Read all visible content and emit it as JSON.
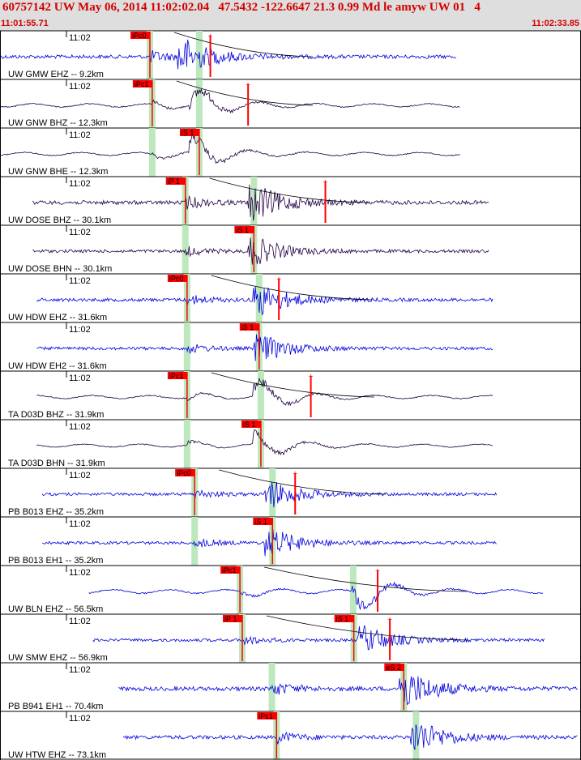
{
  "header": {
    "title": "60757142 UW May 06, 2014 11:02:02.04   47.5432 -122.6647 21.3 0.99 Md le amyw UW 01   4",
    "start_time": "11:01:55.71",
    "end_time": "11:02:33.85"
  },
  "tick_label": "11:02",
  "colors": {
    "header_bg": "#dedede",
    "header_text": "#d40000",
    "trace_blue": "#0000dd",
    "trace_purple": "#220044",
    "pick_red": "#ff0000",
    "window_green": "#bde8bd"
  },
  "icons": [
    "pick-flag-icon",
    "amplitude-marker-icon"
  ],
  "traces": [
    {
      "label": "UW GMW EHZ -- 9.2km",
      "color": "blue",
      "data_start": 0.0,
      "data_end": 0.785,
      "amp": 0.25,
      "p": {
        "pos": 0.258,
        "label": "iPc0"
      },
      "s": {
        "pos": 0.343,
        "label": ""
      },
      "burst": 0.32,
      "amp_pos": 0.362,
      "curve": true,
      "wave": "noise"
    },
    {
      "label": "UW GNW BHZ -- 12.3km",
      "color": "purple",
      "data_start": 0.0,
      "data_end": 0.793,
      "amp": 0.15,
      "p": {
        "pos": 0.262,
        "label": "iPc1"
      },
      "s": {
        "pos": 0.343,
        "label": ""
      },
      "burst": 0.34,
      "amp_pos": 0.427,
      "curve": true,
      "wave": "smooth"
    },
    {
      "label": "UW GNW BHE -- 12.3km",
      "color": "purple",
      "data_start": 0.0,
      "data_end": 0.793,
      "amp": 0.12,
      "p": {
        "pos": 0.262,
        "label": ""
      },
      "s": {
        "pos": 0.343,
        "label": "iS 1"
      },
      "burst": 0.34,
      "amp_pos": null,
      "curve": false,
      "wave": "smooth"
    },
    {
      "label": "UW DOSE BHZ -- 30.1km",
      "color": "purple",
      "data_start": 0.056,
      "data_end": 0.841,
      "amp": 0.3,
      "p": {
        "pos": 0.319,
        "label": "iP 1"
      },
      "s": {
        "pos": 0.437,
        "label": ""
      },
      "burst": 0.44,
      "amp_pos": 0.56,
      "curve": true,
      "wave": "noise"
    },
    {
      "label": "UW DOSE BHN -- 30.1km",
      "color": "purple",
      "data_start": 0.056,
      "data_end": 0.841,
      "amp": 0.12,
      "p": {
        "pos": 0.319,
        "label": ""
      },
      "s": {
        "pos": 0.437,
        "label": "iS 1"
      },
      "burst": 0.44,
      "amp_pos": null,
      "curve": false,
      "wave": "noise"
    },
    {
      "label": "UW HDW EHZ -- 31.6km",
      "color": "blue",
      "data_start": 0.063,
      "data_end": 0.848,
      "amp": 0.18,
      "p": {
        "pos": 0.322,
        "label": "iPc0"
      },
      "s": {
        "pos": 0.446,
        "label": ""
      },
      "burst": 0.45,
      "amp_pos": 0.48,
      "curve": true,
      "wave": "noise"
    },
    {
      "label": "UW HDW EH2 -- 31.6km",
      "color": "blue",
      "data_start": 0.063,
      "data_end": 0.848,
      "amp": 0.12,
      "p": {
        "pos": 0.322,
        "label": ""
      },
      "s": {
        "pos": 0.446,
        "label": "iS 1"
      },
      "burst": 0.45,
      "amp_pos": null,
      "curve": false,
      "wave": "noise"
    },
    {
      "label": "TA D03D BHZ -- 31.9km",
      "color": "purple",
      "data_start": 0.063,
      "data_end": 0.848,
      "amp": 0.12,
      "p": {
        "pos": 0.322,
        "label": "iPc1"
      },
      "s": {
        "pos": 0.449,
        "label": ""
      },
      "burst": 0.45,
      "amp_pos": 0.535,
      "curve": true,
      "wave": "smooth"
    },
    {
      "label": "TA D03D BHN -- 31.9km",
      "color": "purple",
      "data_start": 0.063,
      "data_end": 0.848,
      "amp": 0.06,
      "p": {
        "pos": 0.322,
        "label": ""
      },
      "s": {
        "pos": 0.449,
        "label": "iS 1"
      },
      "burst": 0.45,
      "amp_pos": null,
      "curve": false,
      "wave": "smooth"
    },
    {
      "label": "PB B013 EHZ -- 35.2km",
      "color": "blue",
      "data_start": 0.073,
      "data_end": 0.855,
      "amp": 0.1,
      "p": {
        "pos": 0.335,
        "label": "iPc0"
      },
      "s": {
        "pos": 0.469,
        "label": ""
      },
      "burst": 0.47,
      "amp_pos": 0.508,
      "curve": true,
      "wave": "noise"
    },
    {
      "label": "PB B013 EH1 -- 35.2km",
      "color": "blue",
      "data_start": 0.073,
      "data_end": 0.855,
      "amp": 0.1,
      "p": {
        "pos": 0.335,
        "label": ""
      },
      "s": {
        "pos": 0.469,
        "label": "iS 1"
      },
      "burst": 0.47,
      "amp_pos": null,
      "curve": false,
      "wave": "noise"
    },
    {
      "label": "UW BLN EHZ -- 56.5km",
      "color": "blue",
      "data_start": 0.153,
      "data_end": 0.936,
      "amp": 0.25,
      "p": {
        "pos": 0.413,
        "label": "iPc1"
      },
      "s": {
        "pos": 0.608,
        "label": ""
      },
      "burst": 0.62,
      "amp_pos": 0.65,
      "curve": true,
      "wave": "smooth"
    },
    {
      "label": "UW SMW EHZ -- 56.9km",
      "color": "blue",
      "data_start": 0.16,
      "data_end": 0.938,
      "amp": 0.1,
      "p": {
        "pos": 0.417,
        "label": "iP 1"
      },
      "s": {
        "pos": 0.609,
        "label": "iS 1"
      },
      "burst": 0.63,
      "amp_pos": 0.671,
      "curve": true,
      "wave": "noise"
    },
    {
      "label": "PB B941 EH1 -- 70.4km",
      "color": "blue",
      "data_start": 0.204,
      "data_end": 0.995,
      "amp": 0.35,
      "p": {
        "pos": 0.468,
        "label": ""
      },
      "s": {
        "pos": 0.695,
        "label": "eS 2"
      },
      "burst": 0.7,
      "amp_pos": null,
      "curve": false,
      "wave": "noise"
    },
    {
      "label": "UW HTW EHZ -- 73.1km",
      "color": "blue",
      "data_start": 0.212,
      "data_end": 0.995,
      "amp": 0.25,
      "p": {
        "pos": 0.476,
        "label": "iPc1"
      },
      "s": {
        "pos": 0.716,
        "label": ""
      },
      "burst": 0.72,
      "amp_pos": null,
      "curve": false,
      "wave": "noise"
    }
  ]
}
